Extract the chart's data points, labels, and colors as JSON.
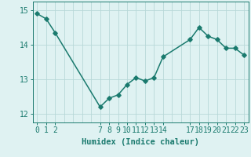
{
  "x": [
    0,
    1,
    2,
    7,
    8,
    9,
    10,
    11,
    12,
    13,
    14,
    17,
    18,
    19,
    20,
    21,
    22,
    23
  ],
  "y": [
    14.9,
    14.75,
    14.35,
    12.2,
    12.45,
    12.55,
    12.85,
    13.05,
    12.95,
    13.05,
    13.65,
    14.15,
    14.5,
    14.25,
    14.15,
    13.9,
    13.9,
    13.7
  ],
  "line_color": "#1a7a6e",
  "bg_color": "#dff2f2",
  "grid_color": "#b8d8d8",
  "xlabel": "Humidex (Indice chaleur)",
  "xlabel_fontsize": 7.5,
  "ylim": [
    11.75,
    15.25
  ],
  "xlim": [
    -0.5,
    23.5
  ],
  "yticks": [
    12,
    13,
    14,
    15
  ],
  "xticks": [
    0,
    1,
    2,
    7,
    8,
    9,
    10,
    11,
    12,
    13,
    14,
    17,
    18,
    19,
    20,
    21,
    22,
    23
  ],
  "grid_xticks": [
    0,
    1,
    2,
    3,
    4,
    5,
    6,
    7,
    8,
    9,
    10,
    11,
    12,
    13,
    14,
    15,
    16,
    17,
    18,
    19,
    20,
    21,
    22,
    23
  ],
  "tick_fontsize": 7,
  "line_width": 1.1,
  "marker_size": 2.8
}
